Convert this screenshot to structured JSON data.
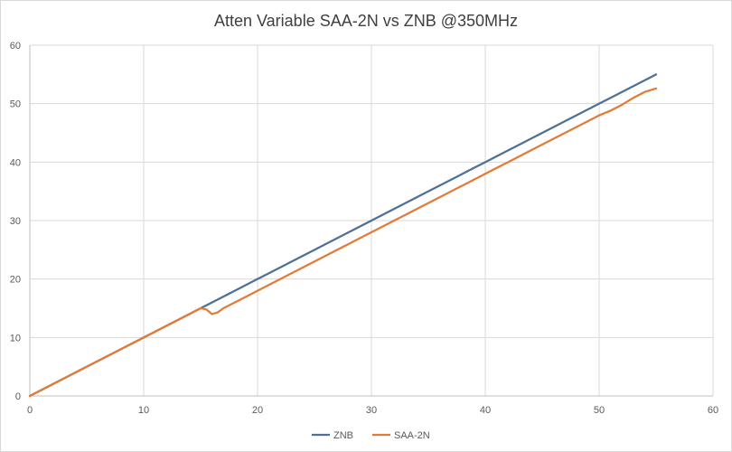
{
  "chart_data": {
    "type": "line",
    "title": "Atten Variable SAA-2N vs ZNB @350MHz",
    "xlabel": "",
    "ylabel": "",
    "xlim": [
      0,
      60
    ],
    "ylim": [
      0,
      60
    ],
    "xticks": [
      0,
      10,
      20,
      30,
      40,
      50,
      60
    ],
    "yticks": [
      0,
      10,
      20,
      30,
      40,
      50,
      60
    ],
    "grid": true,
    "legend_position": "bottom",
    "series": [
      {
        "name": "ZNB",
        "color": "#4e7096",
        "x": [
          0,
          5,
          10,
          14,
          15,
          17,
          19,
          20,
          21,
          25,
          29,
          30,
          35,
          38,
          39,
          40,
          41,
          45,
          49,
          50,
          51,
          55
        ],
        "y": [
          0,
          5,
          10,
          14,
          15,
          17,
          19,
          20,
          21,
          25,
          29,
          30,
          35,
          38,
          39,
          40,
          41,
          45,
          49,
          50,
          51,
          55
        ]
      },
      {
        "name": "SAA-2N",
        "color": "#e07b39",
        "x": [
          0,
          5,
          10,
          14,
          15,
          15.5,
          16,
          16.5,
          17,
          19,
          20,
          25,
          29,
          30,
          35,
          38,
          39,
          40,
          41,
          42,
          45,
          49,
          50,
          51,
          52,
          53,
          54,
          55
        ],
        "y": [
          0,
          5,
          10,
          14,
          15,
          14.8,
          14,
          14.3,
          15,
          17,
          18,
          23,
          27,
          28,
          33,
          36,
          37,
          38,
          39,
          40,
          43,
          47,
          48,
          48.8,
          49.8,
          51,
          52,
          52.6
        ]
      }
    ]
  }
}
